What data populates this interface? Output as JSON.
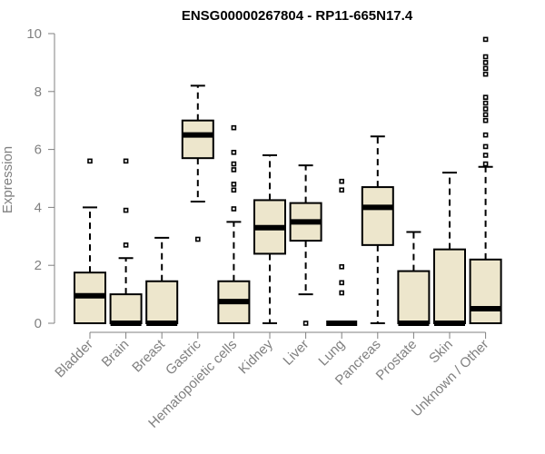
{
  "chart_data": {
    "type": "boxplot",
    "title": "ENSG00000267804 - RP11-665N17.4",
    "ylabel": "Expression",
    "xlabel": "",
    "ylim": [
      0,
      10
    ],
    "yticks": [
      0,
      2,
      4,
      6,
      8,
      10
    ],
    "colors": {
      "box_fill": "#ede6cc",
      "box_stroke": "#000000",
      "axis": "#808080"
    },
    "categories": [
      "Bladder",
      "Brain",
      "Breast",
      "Gastric",
      "Hematopoietic cells",
      "Kidney",
      "Liver",
      "Lung",
      "Pancreas",
      "Prostate",
      "Skin",
      "Unknown / Other"
    ],
    "boxes": [
      {
        "name": "Bladder",
        "whisker_low": 0,
        "q1": 0,
        "median": 0.95,
        "q3": 1.75,
        "whisker_high": 4.0,
        "outliers": [
          5.6
        ]
      },
      {
        "name": "Brain",
        "whisker_low": 0,
        "q1": 0,
        "median": 0,
        "q3": 1.0,
        "whisker_high": 2.25,
        "outliers": [
          2.7,
          3.9,
          5.6
        ]
      },
      {
        "name": "Breast",
        "whisker_low": 0,
        "q1": 0,
        "median": 0,
        "q3": 1.45,
        "whisker_high": 2.95,
        "outliers": []
      },
      {
        "name": "Gastric",
        "whisker_low": 4.2,
        "q1": 5.7,
        "median": 6.5,
        "q3": 7.0,
        "whisker_high": 8.2,
        "outliers": [
          2.9
        ]
      },
      {
        "name": "Hematopoietic cells",
        "whisker_low": 0,
        "q1": 0,
        "median": 0.75,
        "q3": 1.45,
        "whisker_high": 3.5,
        "outliers": [
          3.95,
          4.6,
          4.8,
          5.3,
          5.5,
          5.9,
          6.75
        ]
      },
      {
        "name": "Kidney",
        "whisker_low": 0,
        "q1": 2.4,
        "median": 3.3,
        "q3": 4.25,
        "whisker_high": 5.8,
        "outliers": []
      },
      {
        "name": "Liver",
        "whisker_low": 1.0,
        "q1": 2.85,
        "median": 3.5,
        "q3": 4.15,
        "whisker_high": 5.45,
        "outliers": [
          0
        ]
      },
      {
        "name": "Lung",
        "whisker_low": 0,
        "q1": 0,
        "median": 0,
        "q3": 0,
        "whisker_high": 0,
        "outliers": [
          1.05,
          1.4,
          1.95,
          4.6,
          4.9
        ]
      },
      {
        "name": "Pancreas",
        "whisker_low": 0,
        "q1": 2.7,
        "median": 4.0,
        "q3": 4.7,
        "whisker_high": 6.45,
        "outliers": []
      },
      {
        "name": "Prostate",
        "whisker_low": 0,
        "q1": 0,
        "median": 0,
        "q3": 1.8,
        "whisker_high": 3.15,
        "outliers": []
      },
      {
        "name": "Skin",
        "whisker_low": 0,
        "q1": 0,
        "median": 0,
        "q3": 2.55,
        "whisker_high": 5.2,
        "outliers": []
      },
      {
        "name": "Unknown / Other",
        "whisker_low": 0,
        "q1": 0,
        "median": 0.5,
        "q3": 2.2,
        "whisker_high": 5.4,
        "outliers": [
          5.5,
          5.8,
          6.1,
          6.5,
          7.0,
          7.2,
          7.4,
          7.6,
          7.8,
          8.6,
          8.8,
          9.0,
          9.2,
          9.8
        ]
      }
    ]
  }
}
